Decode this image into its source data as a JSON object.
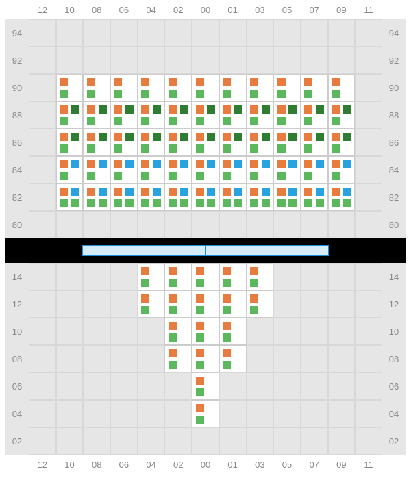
{
  "layout": {
    "colors": {
      "background": "#e6e6e6",
      "grid_line": "#d8d8d8",
      "active_cell": "#ffffff",
      "label": "#888888",
      "divider": "#000000",
      "rack_fill": "#d6ecf9",
      "rack_border": "#1a8cd8",
      "orange": "#e87b3e",
      "green": "#5cb85c",
      "darkgreen": "#2e7d32",
      "blue": "#29a3e0"
    },
    "col_labels": [
      "12",
      "10",
      "08",
      "06",
      "04",
      "02",
      "00",
      "01",
      "03",
      "05",
      "07",
      "09",
      "11"
    ],
    "top_rows": [
      "94",
      "92",
      "90",
      "88",
      "86",
      "84",
      "82",
      "80"
    ],
    "bottom_rows": [
      "14",
      "12",
      "10",
      "08",
      "06",
      "04",
      "02"
    ],
    "top_active_cols_by_row": {
      "94": [],
      "92": [],
      "90": [
        1,
        2,
        3,
        4,
        5,
        6,
        7,
        8,
        9,
        10,
        11
      ],
      "88": [
        1,
        2,
        3,
        4,
        5,
        6,
        7,
        8,
        9,
        10,
        11
      ],
      "86": [
        1,
        2,
        3,
        4,
        5,
        6,
        7,
        8,
        9,
        10,
        11
      ],
      "84": [
        1,
        2,
        3,
        4,
        5,
        6,
        7,
        8,
        9,
        10,
        11
      ],
      "82": [
        1,
        2,
        3,
        4,
        5,
        6,
        7,
        8,
        9,
        10,
        11
      ],
      "80": []
    },
    "bottom_active_cols_by_row": {
      "14": [
        4,
        5,
        6,
        7,
        8
      ],
      "12": [
        4,
        5,
        6,
        7,
        8
      ],
      "10": [
        5,
        6,
        7
      ],
      "08": [
        5,
        6,
        7
      ],
      "06": [
        6
      ],
      "04": [
        6
      ],
      "02": []
    },
    "marks_top": {
      "90": {
        "all": {
          "tl": "orange",
          "bl": "green"
        }
      },
      "88": {
        "all": {
          "tl": "orange",
          "tr": "darkgreen",
          "bl": "green"
        }
      },
      "86": {
        "all": {
          "tl": "orange",
          "tr": "darkgreen",
          "bl": "green"
        }
      },
      "84": {
        "all": {
          "tl": "orange",
          "tr": "blue",
          "bl": "green"
        }
      },
      "82": {
        "all": {
          "tl": "orange",
          "tr": "blue",
          "bl": "green",
          "br": "green"
        }
      }
    },
    "marks_bottom": {
      "14": {
        "all": {
          "tl": "orange",
          "bl": "green"
        }
      },
      "12": {
        "all": {
          "tl": "orange",
          "bl": "green"
        }
      },
      "10": {
        "all": {
          "tl": "orange",
          "bl": "green"
        }
      },
      "08": {
        "all": {
          "tl": "orange",
          "bl": "green"
        }
      },
      "06": {
        "all": {
          "tl": "orange",
          "bl": "green"
        }
      },
      "04": {
        "all": {
          "tl": "orange",
          "bl": "green"
        }
      }
    },
    "rack_segments": 2
  }
}
